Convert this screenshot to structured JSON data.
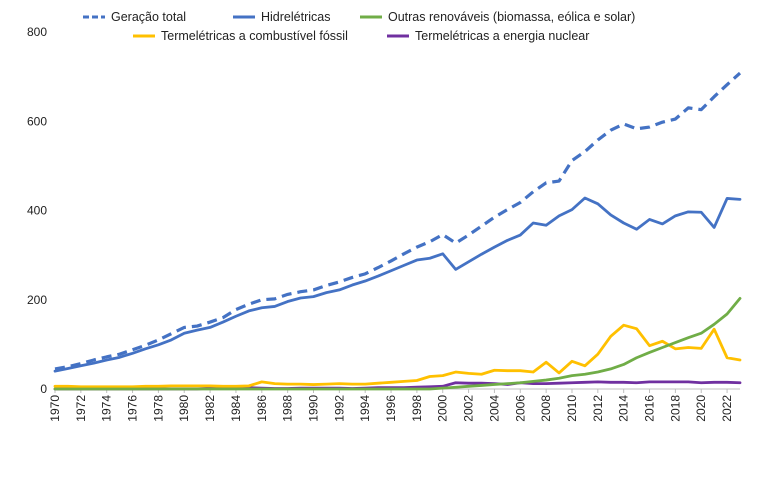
{
  "chart_data": {
    "type": "line",
    "title": "",
    "xlabel": "",
    "ylabel": "",
    "ylim": [
      0,
      800
    ],
    "xlim": [
      1970,
      2023
    ],
    "yticks": [
      0,
      200,
      400,
      600,
      800
    ],
    "xticks": [
      1970,
      1972,
      1974,
      1976,
      1978,
      1980,
      1982,
      1984,
      1986,
      1988,
      1990,
      1992,
      1994,
      1996,
      1998,
      2000,
      2002,
      2004,
      2006,
      2008,
      2010,
      2012,
      2014,
      2016,
      2018,
      2020,
      2022
    ],
    "grid": false,
    "legend": "top",
    "x": [
      1970,
      1971,
      1972,
      1973,
      1974,
      1975,
      1976,
      1977,
      1978,
      1979,
      1980,
      1981,
      1982,
      1983,
      1984,
      1985,
      1986,
      1987,
      1988,
      1989,
      1990,
      1991,
      1992,
      1993,
      1994,
      1995,
      1996,
      1997,
      1998,
      1999,
      2000,
      2001,
      2002,
      2003,
      2004,
      2005,
      2006,
      2007,
      2008,
      2009,
      2010,
      2011,
      2012,
      2013,
      2014,
      2015,
      2016,
      2017,
      2018,
      2019,
      2020,
      2021,
      2022,
      2023
    ],
    "series": [
      {
        "name": "Geração total",
        "color": "#4472C4",
        "dash": "dashed",
        "values": [
          45,
          50,
          57,
          65,
          72,
          78,
          88,
          98,
          110,
          124,
          138,
          141,
          150,
          160,
          178,
          190,
          200,
          202,
          212,
          218,
          222,
          232,
          240,
          250,
          258,
          272,
          287,
          303,
          318,
          330,
          346,
          327,
          345,
          365,
          385,
          402,
          418,
          442,
          462,
          466,
          512,
          532,
          558,
          580,
          594,
          583,
          587,
          598,
          605,
          630,
          626,
          655,
          682,
          708
        ]
      },
      {
        "name": "Hidrelétricas",
        "color": "#4472C4",
        "dash": "solid",
        "values": [
          40,
          46,
          52,
          58,
          65,
          71,
          80,
          90,
          99,
          110,
          125,
          132,
          138,
          150,
          163,
          175,
          182,
          185,
          196,
          204,
          207,
          216,
          222,
          233,
          242,
          253,
          265,
          277,
          289,
          293,
          303,
          268,
          285,
          302,
          318,
          333,
          345,
          372,
          367,
          388,
          402,
          428,
          415,
          390,
          372,
          358,
          380,
          370,
          388,
          397,
          396,
          362,
          427,
          425
        ]
      },
      {
        "name": "Outras renováveis (biomassa, eólica e solar)",
        "color": "#70AD47",
        "dash": "solid",
        "values": [
          0,
          0,
          0,
          0,
          0,
          0,
          0,
          0,
          0,
          0,
          0,
          0,
          0,
          0,
          0,
          0,
          0,
          0,
          0,
          0,
          0,
          0,
          0,
          0,
          0,
          0,
          0,
          0,
          0,
          0,
          2,
          4,
          6,
          8,
          10,
          12,
          14,
          17,
          20,
          24,
          30,
          33,
          38,
          45,
          55,
          70,
          82,
          93,
          104,
          115,
          125,
          145,
          168,
          203
        ]
      },
      {
        "name": "Termelétricas a combustível fóssil",
        "color": "#FFC000",
        "dash": "solid",
        "values": [
          6,
          6,
          5,
          5,
          5,
          5,
          5,
          6,
          6,
          7,
          7,
          7,
          7,
          6,
          6,
          7,
          16,
          12,
          11,
          11,
          10,
          11,
          12,
          11,
          11,
          13,
          15,
          17,
          19,
          28,
          30,
          38,
          35,
          33,
          42,
          41,
          41,
          38,
          60,
          36,
          62,
          52,
          78,
          118,
          143,
          135,
          97,
          107,
          90,
          93,
          91,
          134,
          70,
          65
        ]
      },
      {
        "name": "Termelétricas a energia nuclear",
        "color": "#7030A0",
        "dash": "solid",
        "values": [
          0,
          0,
          0,
          0,
          0,
          0,
          0,
          0,
          0,
          0,
          0,
          0,
          2,
          3,
          4,
          3,
          2,
          1,
          1,
          2,
          2,
          2,
          2,
          1,
          2,
          3,
          3,
          3,
          4,
          5,
          6,
          14,
          13,
          13,
          12,
          10,
          14,
          12,
          12,
          13,
          14,
          15,
          16,
          15,
          15,
          14,
          16,
          16,
          16,
          16,
          14,
          15,
          15,
          14
        ]
      }
    ]
  }
}
